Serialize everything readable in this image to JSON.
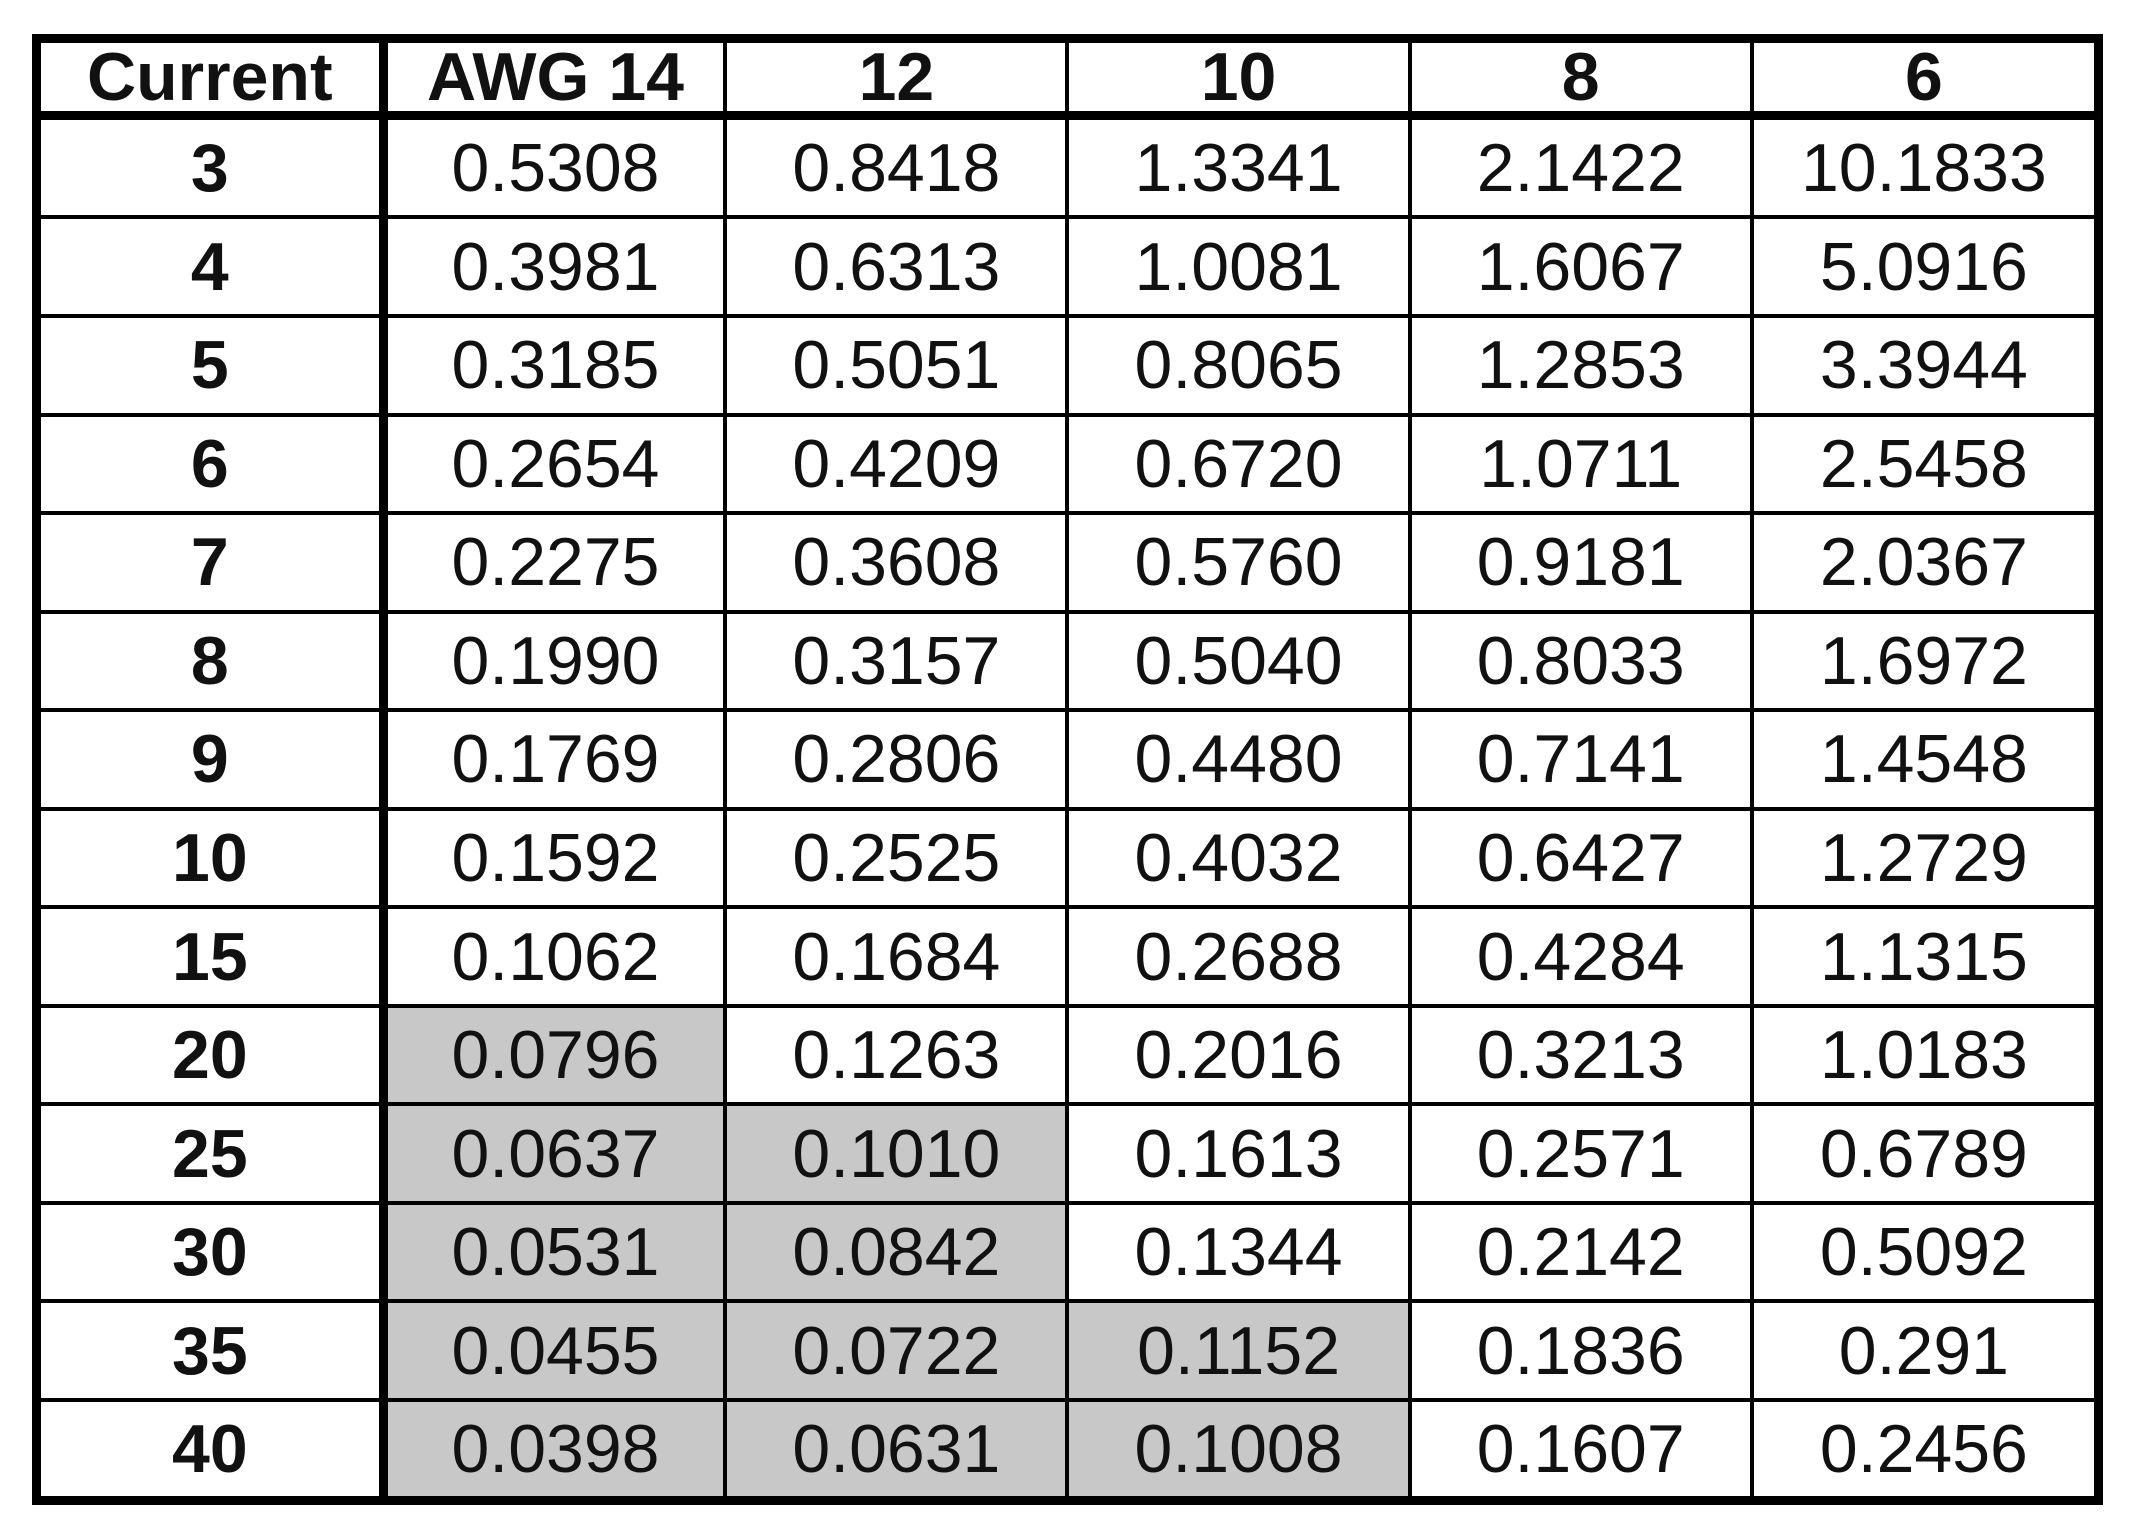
{
  "table": {
    "headers": [
      "Current",
      "AWG 14",
      "12",
      "10",
      "8",
      "6"
    ],
    "rows": [
      {
        "current": "3",
        "values": [
          "0.5308",
          "0.8418",
          "1.3341",
          "2.1422",
          "10.1833"
        ],
        "shaded": [
          false,
          false,
          false,
          false,
          false
        ]
      },
      {
        "current": "4",
        "values": [
          "0.3981",
          "0.6313",
          "1.0081",
          "1.6067",
          "5.0916"
        ],
        "shaded": [
          false,
          false,
          false,
          false,
          false
        ]
      },
      {
        "current": "5",
        "values": [
          "0.3185",
          "0.5051",
          "0.8065",
          "1.2853",
          "3.3944"
        ],
        "shaded": [
          false,
          false,
          false,
          false,
          false
        ]
      },
      {
        "current": "6",
        "values": [
          "0.2654",
          "0.4209",
          "0.6720",
          "1.0711",
          "2.5458"
        ],
        "shaded": [
          false,
          false,
          false,
          false,
          false
        ]
      },
      {
        "current": "7",
        "values": [
          "0.2275",
          "0.3608",
          "0.5760",
          "0.9181",
          "2.0367"
        ],
        "shaded": [
          false,
          false,
          false,
          false,
          false
        ]
      },
      {
        "current": "8",
        "values": [
          "0.1990",
          "0.3157",
          "0.5040",
          "0.8033",
          "1.6972"
        ],
        "shaded": [
          false,
          false,
          false,
          false,
          false
        ]
      },
      {
        "current": "9",
        "values": [
          "0.1769",
          "0.2806",
          "0.4480",
          "0.7141",
          "1.4548"
        ],
        "shaded": [
          false,
          false,
          false,
          false,
          false
        ]
      },
      {
        "current": "10",
        "values": [
          "0.1592",
          "0.2525",
          "0.4032",
          "0.6427",
          "1.2729"
        ],
        "shaded": [
          false,
          false,
          false,
          false,
          false
        ]
      },
      {
        "current": "15",
        "values": [
          "0.1062",
          "0.1684",
          "0.2688",
          "0.4284",
          "1.1315"
        ],
        "shaded": [
          false,
          false,
          false,
          false,
          false
        ]
      },
      {
        "current": "20",
        "values": [
          "0.0796",
          "0.1263",
          "0.2016",
          "0.3213",
          "1.0183"
        ],
        "shaded": [
          true,
          false,
          false,
          false,
          false
        ]
      },
      {
        "current": "25",
        "values": [
          "0.0637",
          "0.1010",
          "0.1613",
          "0.2571",
          "0.6789"
        ],
        "shaded": [
          true,
          true,
          false,
          false,
          false
        ]
      },
      {
        "current": "30",
        "values": [
          "0.0531",
          "0.0842",
          "0.1344",
          "0.2142",
          "0.5092"
        ],
        "shaded": [
          true,
          true,
          false,
          false,
          false
        ]
      },
      {
        "current": "35",
        "values": [
          "0.0455",
          "0.0722",
          "0.1152",
          "0.1836",
          "0.291"
        ],
        "shaded": [
          true,
          true,
          true,
          false,
          false
        ]
      },
      {
        "current": "40",
        "values": [
          "0.0398",
          "0.0631",
          "0.1008",
          "0.1607",
          "0.2456"
        ],
        "shaded": [
          true,
          true,
          true,
          false,
          false
        ]
      }
    ],
    "shade_color": "#c8c8c8"
  }
}
